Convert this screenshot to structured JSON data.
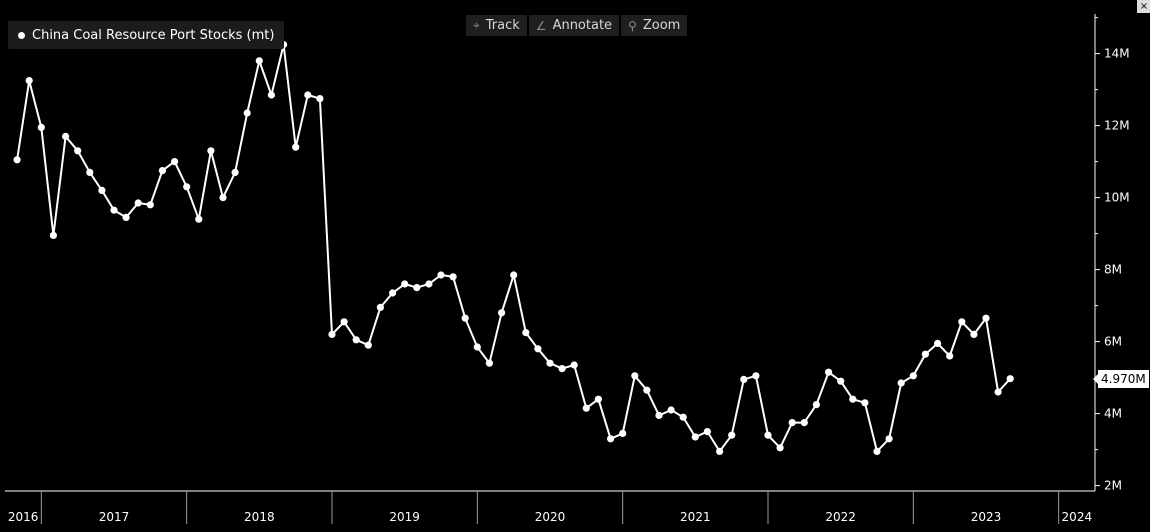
{
  "toolbar": [
    {
      "label": "Track",
      "icon": "crosshair-icon"
    },
    {
      "label": "Annotate",
      "icon": "pencil-icon"
    },
    {
      "label": "Zoom",
      "icon": "magnifier-icon"
    }
  ],
  "close_label": "×",
  "last_value_label": "4.970M",
  "chart_data": {
    "type": "line",
    "series": [
      {
        "name": "China Coal Resource Port Stocks (mt)",
        "color": "#ffffff",
        "marker": "circle",
        "values": [
          11.05,
          13.25,
          11.95,
          8.95,
          11.7,
          11.3,
          10.7,
          10.2,
          9.65,
          9.45,
          9.85,
          9.8,
          10.75,
          11.0,
          10.3,
          9.4,
          11.3,
          10.0,
          10.7,
          12.35,
          13.8,
          12.85,
          14.25,
          11.4,
          12.85,
          12.75,
          6.2,
          6.55,
          6.05,
          5.9,
          6.95,
          7.35,
          7.6,
          7.5,
          7.6,
          7.85,
          7.8,
          6.65,
          5.85,
          5.4,
          6.8,
          7.85,
          6.25,
          5.8,
          5.4,
          5.25,
          5.35,
          4.15,
          4.4,
          3.3,
          3.45,
          5.05,
          4.65,
          3.95,
          4.1,
          3.9,
          3.35,
          3.5,
          2.95,
          3.4,
          4.95,
          5.05,
          3.4,
          3.05,
          3.75,
          3.75,
          4.25,
          5.15,
          4.9,
          4.4,
          4.3,
          2.95,
          3.3,
          4.85,
          5.05,
          5.65,
          5.95,
          5.6,
          6.55,
          6.2,
          6.65,
          4.6,
          4.97
        ]
      }
    ],
    "x_start": "2016-11",
    "x_interval": "1 month",
    "x_tick_labels": [
      "2016",
      "2017",
      "2018",
      "2019",
      "2020",
      "2021",
      "2022",
      "2023",
      "2024"
    ],
    "y_tick_labels": [
      "2M",
      "4M",
      "6M",
      "8M",
      "10M",
      "12M",
      "14M"
    ],
    "y_ticks": [
      2,
      4,
      6,
      8,
      10,
      12,
      14
    ],
    "ylim": [
      1.85,
      15.1
    ],
    "y_unit": "M",
    "xlim": [
      "2016-10",
      "2024-04"
    ],
    "grid": false,
    "legend": "top-left",
    "background": "#000000",
    "axis_color": "#ffffff"
  }
}
